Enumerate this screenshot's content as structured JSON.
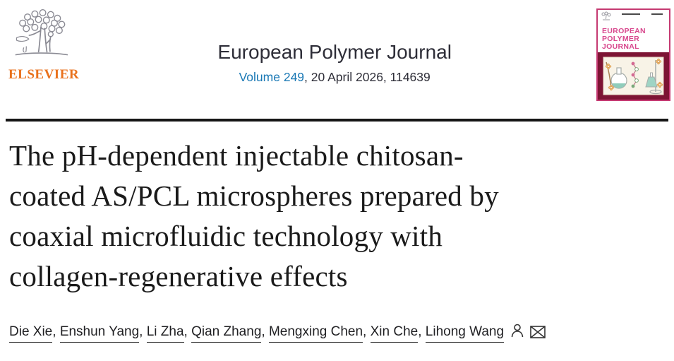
{
  "header": {
    "elsevier_wordmark": "ELSEVIER",
    "journal_name": "European Polymer Journal",
    "volume_link": "Volume 249",
    "issue_suffix": ", 20 April 2026, 114639",
    "cover": {
      "title_lines": [
        "EUROPEAN",
        "POLYMER",
        "JOURNAL"
      ]
    }
  },
  "article": {
    "title_full": "The pH-dependent injectable chitosan-coated AS/PCL microspheres prepared by coaxial microfluidic technology with collagen-regenerative effects",
    "title_lines": [
      "The pH-dependent injectable chitosan-",
      "coated AS/PCL microspheres prepared by",
      "coaxial microfluidic technology with",
      "collagen-regenerative effects"
    ],
    "authors": [
      "Die Xie",
      "Enshun Yang",
      "Li Zha",
      "Qian Zhang",
      "Mengxing Chen",
      "Xin Che",
      "Lihong Wang"
    ],
    "author_separator": ", "
  },
  "icons": {
    "author_profile": "person-icon",
    "correspondence": "envelope-icon"
  },
  "colors": {
    "link_blue": "#1b79b5",
    "elsevier_orange": "#e9711c",
    "cover_border_pink": "#c53a72",
    "cover_title_pink": "#d8478d",
    "cover_maroon": "#7d1434",
    "rule_black": "#161616",
    "text_dark": "#1f1f22"
  }
}
